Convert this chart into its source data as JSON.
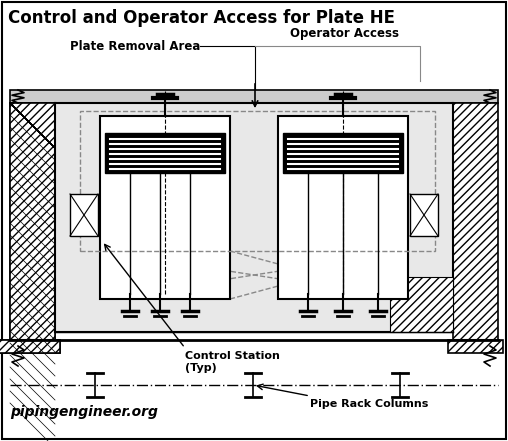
{
  "title": "Control and Operator Access for Plate HE",
  "bg_color": "#ffffff",
  "label_plate_removal": "Plate Removal Area",
  "label_operator_access": "Operator Access",
  "label_control_station": "Control Station\n(Typ)",
  "label_pipe_rack": "Pipe Rack Columns",
  "label_website": "pipingengineer.org",
  "fig_width": 5.08,
  "fig_height": 4.41,
  "dpi": 100
}
